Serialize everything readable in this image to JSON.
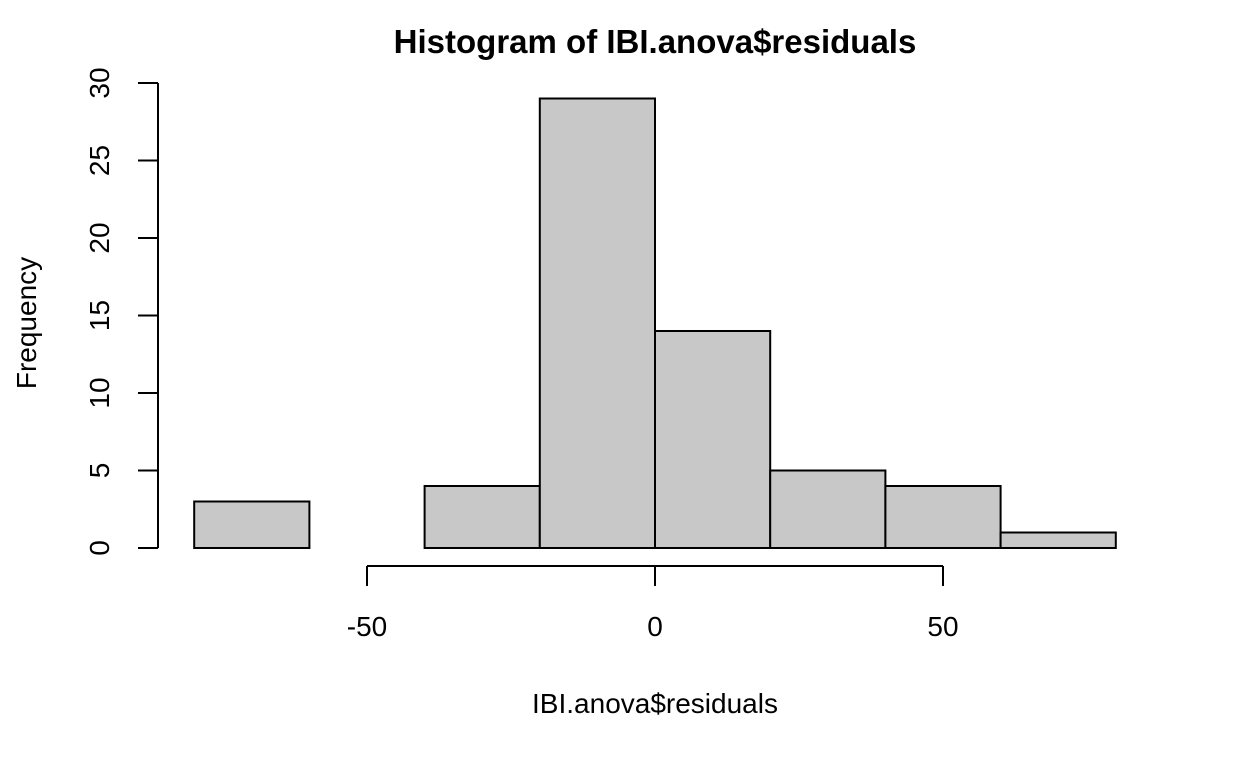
{
  "chart_data": {
    "type": "bar",
    "title": "Histogram of IBI.anova$residuals",
    "xlabel": "IBI.anova$residuals",
    "ylabel": "Frequency",
    "bins": [
      {
        "x0": -80,
        "x1": -60,
        "count": 3
      },
      {
        "x0": -60,
        "x1": -40,
        "count": 0
      },
      {
        "x0": -40,
        "x1": -20,
        "count": 4
      },
      {
        "x0": -20,
        "x1": 0,
        "count": 29
      },
      {
        "x0": 0,
        "x1": 20,
        "count": 14
      },
      {
        "x0": 20,
        "x1": 40,
        "count": 5
      },
      {
        "x0": 40,
        "x1": 60,
        "count": 4
      },
      {
        "x0": 60,
        "x1": 80,
        "count": 1
      }
    ],
    "xticks": [
      -50,
      0,
      50
    ],
    "yticks": [
      0,
      5,
      10,
      15,
      20,
      25,
      30
    ],
    "xlim": [
      -80,
      80
    ],
    "ylim": [
      0,
      30
    ],
    "grid": false,
    "bar_color": "#c8c8c8",
    "edge_color": "#000000"
  }
}
